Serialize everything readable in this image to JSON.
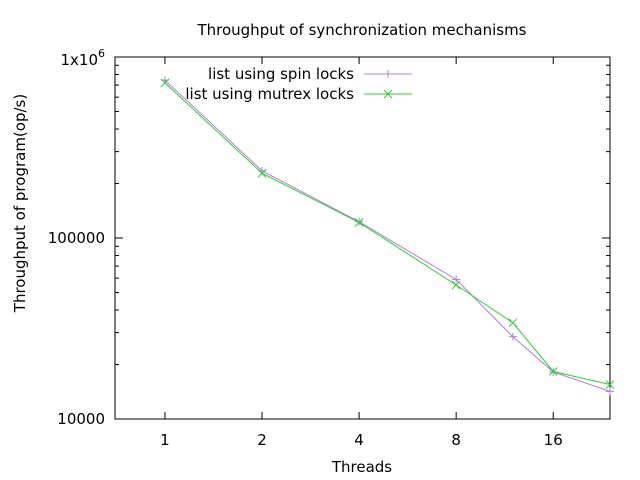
{
  "chart_data": {
    "type": "line",
    "title": "Throughput of synchronization mechanisms",
    "xlabel": "Threads",
    "ylabel": "Throughput of program(op/s)",
    "x_scale": "log2",
    "y_scale": "log10",
    "xlim": [
      0.7,
      24
    ],
    "ylim": [
      10000,
      1000000
    ],
    "x_ticks": [
      1,
      2,
      4,
      8,
      16
    ],
    "x_tick_labels": [
      "1",
      "2",
      "4",
      "8",
      "16"
    ],
    "y_ticks": [
      10000,
      100000,
      1000000
    ],
    "y_tick_labels": [
      "10000",
      "100000",
      "1x10"
    ],
    "y_tick_superscript": "6",
    "grid": false,
    "legend_position": "top-right",
    "series": [
      {
        "name": "list using spin locks",
        "color": "#b57bea",
        "marker": "plus",
        "x": [
          1,
          2,
          4,
          8,
          12,
          16,
          24
        ],
        "y": [
          745000,
          235000,
          123000,
          59000,
          28500,
          18200,
          14200
        ]
      },
      {
        "name": "list using mutrex locks",
        "color": "#2bd12b",
        "marker": "cross",
        "x": [
          1,
          2,
          4,
          8,
          12,
          16,
          24
        ],
        "y": [
          720000,
          228000,
          122000,
          55000,
          34000,
          18300,
          15500
        ]
      }
    ]
  }
}
